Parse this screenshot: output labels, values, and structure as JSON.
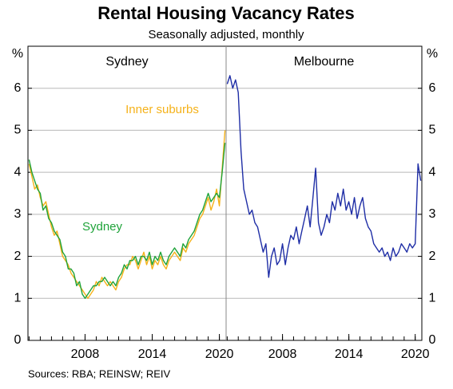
{
  "header": {
    "title": "Rental Housing Vacancy Rates",
    "subtitle": "Seasonally adjusted, monthly"
  },
  "footer": {
    "source": "Sources: RBA; REINSW; REIV"
  },
  "chart_data": [
    {
      "type": "line",
      "title": "Sydney",
      "ylabel": "%",
      "xlim": [
        2002.9,
        2020.6
      ],
      "xticks": [
        2008,
        2014,
        2020
      ],
      "xminor_ticks": [
        2003,
        2004,
        2005,
        2006,
        2007,
        2008,
        2009,
        2010,
        2011,
        2012,
        2013,
        2014,
        2015,
        2016,
        2017,
        2018,
        2019,
        2020
      ],
      "ylim": [
        0,
        7
      ],
      "yticks": [
        0,
        1,
        2,
        3,
        4,
        5,
        6
      ],
      "grid": true,
      "x": [
        2003,
        2003.25,
        2003.5,
        2003.75,
        2004,
        2004.25,
        2004.5,
        2004.75,
        2005,
        2005.25,
        2005.5,
        2005.75,
        2006,
        2006.25,
        2006.5,
        2006.75,
        2007,
        2007.25,
        2007.5,
        2007.75,
        2008,
        2008.25,
        2008.5,
        2008.75,
        2009,
        2009.25,
        2009.5,
        2009.75,
        2010,
        2010.25,
        2010.5,
        2010.75,
        2011,
        2011.25,
        2011.5,
        2011.75,
        2012,
        2012.25,
        2012.5,
        2012.75,
        2013,
        2013.25,
        2013.5,
        2013.75,
        2014,
        2014.25,
        2014.5,
        2014.75,
        2015,
        2015.25,
        2015.5,
        2015.75,
        2016,
        2016.25,
        2016.5,
        2016.75,
        2017,
        2017.25,
        2017.5,
        2017.75,
        2018,
        2018.25,
        2018.5,
        2018.75,
        2019,
        2019.25,
        2019.5,
        2019.75,
        2020,
        2020.25,
        2020.5
      ],
      "series": [
        {
          "name": "Inner suburbs",
          "color": "#f5b21a",
          "values": [
            4.2,
            3.9,
            3.6,
            3.7,
            3.4,
            3.2,
            3.3,
            3.0,
            2.7,
            2.5,
            2.6,
            2.3,
            2.0,
            1.9,
            1.8,
            1.6,
            1.5,
            1.4,
            1.3,
            1.2,
            1.1,
            1.0,
            1.1,
            1.2,
            1.4,
            1.3,
            1.5,
            1.4,
            1.3,
            1.4,
            1.3,
            1.2,
            1.4,
            1.5,
            1.7,
            1.8,
            1.8,
            2.0,
            1.9,
            1.7,
            1.9,
            2.1,
            1.8,
            2.0,
            1.7,
            1.9,
            1.8,
            2.0,
            1.8,
            1.7,
            1.9,
            2.0,
            2.1,
            2.0,
            1.9,
            2.2,
            2.1,
            2.3,
            2.4,
            2.5,
            2.7,
            2.9,
            3.0,
            3.2,
            3.4,
            3.1,
            3.3,
            3.6,
            3.2,
            4.1,
            5.0
          ]
        },
        {
          "name": "Sydney",
          "color": "#1fa33a",
          "values": [
            4.3,
            4.0,
            3.8,
            3.6,
            3.5,
            3.1,
            3.2,
            2.9,
            2.8,
            2.6,
            2.5,
            2.4,
            2.1,
            2.0,
            1.7,
            1.7,
            1.6,
            1.3,
            1.4,
            1.1,
            1.0,
            1.1,
            1.2,
            1.3,
            1.3,
            1.4,
            1.4,
            1.5,
            1.4,
            1.3,
            1.4,
            1.3,
            1.5,
            1.6,
            1.8,
            1.7,
            1.9,
            1.9,
            2.0,
            1.8,
            2.0,
            2.0,
            1.9,
            2.1,
            1.8,
            2.0,
            1.9,
            2.1,
            1.9,
            1.8,
            2.0,
            2.1,
            2.2,
            2.1,
            2.0,
            2.3,
            2.2,
            2.4,
            2.5,
            2.6,
            2.8,
            3.0,
            3.1,
            3.3,
            3.5,
            3.3,
            3.4,
            3.5,
            3.4,
            4.0,
            4.7
          ]
        }
      ]
    },
    {
      "type": "line",
      "title": "Melbourne",
      "ylabel": "%",
      "xlim": [
        2002.9,
        2020.6
      ],
      "xticks": [
        2008,
        2014,
        2020
      ],
      "xminor_ticks": [
        2003,
        2004,
        2005,
        2006,
        2007,
        2008,
        2009,
        2010,
        2011,
        2012,
        2013,
        2014,
        2015,
        2016,
        2017,
        2018,
        2019,
        2020
      ],
      "ylim": [
        0,
        7
      ],
      "yticks": [
        0,
        1,
        2,
        3,
        4,
        5,
        6
      ],
      "grid": true,
      "x": [
        2003,
        2003.25,
        2003.5,
        2003.75,
        2004,
        2004.25,
        2004.5,
        2004.75,
        2005,
        2005.25,
        2005.5,
        2005.75,
        2006,
        2006.25,
        2006.5,
        2006.75,
        2007,
        2007.25,
        2007.5,
        2007.75,
        2008,
        2008.25,
        2008.5,
        2008.75,
        2009,
        2009.25,
        2009.5,
        2009.75,
        2010,
        2010.25,
        2010.5,
        2010.75,
        2011,
        2011.25,
        2011.5,
        2011.75,
        2012,
        2012.25,
        2012.5,
        2012.75,
        2013,
        2013.25,
        2013.5,
        2013.75,
        2014,
        2014.25,
        2014.5,
        2014.75,
        2015,
        2015.25,
        2015.5,
        2015.75,
        2016,
        2016.25,
        2016.5,
        2016.75,
        2017,
        2017.25,
        2017.5,
        2017.75,
        2018,
        2018.25,
        2018.5,
        2018.75,
        2019,
        2019.25,
        2019.5,
        2019.75,
        2020,
        2020.25,
        2020.5
      ],
      "series": [
        {
          "color": "#1f2ea6",
          "values": [
            6.1,
            6.3,
            6.0,
            6.2,
            5.9,
            4.5,
            3.6,
            3.3,
            3.0,
            3.1,
            2.8,
            2.7,
            2.4,
            2.1,
            2.3,
            1.5,
            2.0,
            2.2,
            1.8,
            1.9,
            2.3,
            1.8,
            2.2,
            2.5,
            2.4,
            2.7,
            2.3,
            2.6,
            2.9,
            3.2,
            2.7,
            3.4,
            4.1,
            2.8,
            2.5,
            2.7,
            3.0,
            2.8,
            3.3,
            3.1,
            3.5,
            3.2,
            3.6,
            3.1,
            3.3,
            3.0,
            3.4,
            2.9,
            3.2,
            3.4,
            2.9,
            2.7,
            2.6,
            2.3,
            2.2,
            2.1,
            2.2,
            2.0,
            2.1,
            1.9,
            2.2,
            2.0,
            2.1,
            2.3,
            2.2,
            2.1,
            2.3,
            2.2,
            2.3,
            4.2,
            3.8
          ]
        }
      ]
    }
  ]
}
